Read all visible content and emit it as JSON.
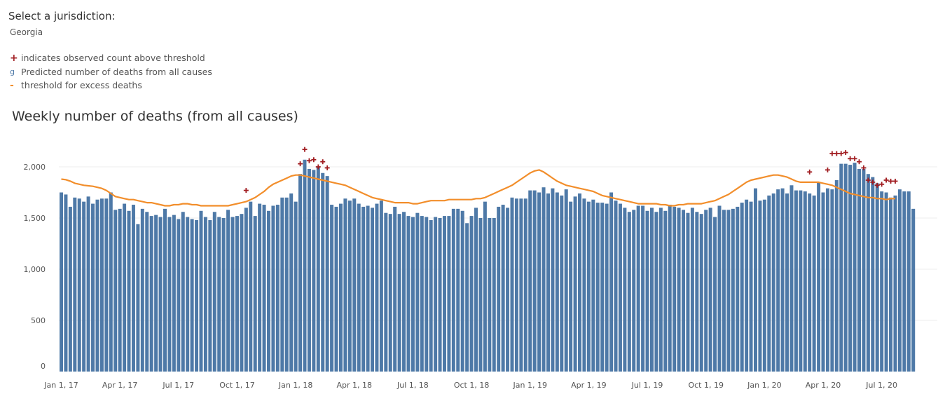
{
  "selector": {
    "label": "Select a jurisdiction:",
    "value": "Georgia"
  },
  "legend": {
    "items": [
      {
        "symbol": "+",
        "label": "indicates observed count above threshold",
        "icon": "plus-icon"
      },
      {
        "symbol": "g",
        "label": "Predicted number of deaths from all causes",
        "icon": "g-icon"
      },
      {
        "symbol": "-",
        "label": "threshold for excess deaths",
        "icon": "dash-icon"
      }
    ]
  },
  "colors": {
    "bar": "#4e79a7",
    "threshold": "#f28e2b",
    "marker": "#a11d21",
    "grid": "#eeeeee"
  },
  "chart_data": {
    "type": "bar",
    "title": "Weekly number of deaths (from all causes)",
    "xlabel": "",
    "ylabel": "",
    "ylim": [
      0,
      2200
    ],
    "yticks": [
      0,
      500,
      1000,
      1500,
      2000
    ],
    "ytick_labels": [
      "0",
      "500",
      "1,000",
      "1,500",
      "2,000"
    ],
    "xticks": [
      {
        "week": 0,
        "label": "Jan 1, 17"
      },
      {
        "week": 13,
        "label": "Apr 1, 17"
      },
      {
        "week": 26,
        "label": "Jul 1, 17"
      },
      {
        "week": 39,
        "label": "Oct 1, 17"
      },
      {
        "week": 52,
        "label": "Jan 1, 18"
      },
      {
        "week": 65,
        "label": "Apr 1, 18"
      },
      {
        "week": 78,
        "label": "Jul 1, 18"
      },
      {
        "week": 91,
        "label": "Oct 1, 18"
      },
      {
        "week": 104,
        "label": "Jan 1, 19"
      },
      {
        "week": 117,
        "label": "Apr 1, 19"
      },
      {
        "week": 130,
        "label": "Jul 1, 19"
      },
      {
        "week": 143,
        "label": "Oct 1, 19"
      },
      {
        "week": 156,
        "label": "Jan 1, 20"
      },
      {
        "week": 169,
        "label": "Apr 1, 20"
      },
      {
        "week": 182,
        "label": "Jul 1, 20"
      }
    ],
    "observed": [
      1750,
      1730,
      1610,
      1700,
      1690,
      1660,
      1710,
      1640,
      1680,
      1690,
      1690,
      1750,
      1580,
      1590,
      1640,
      1570,
      1630,
      1440,
      1590,
      1560,
      1520,
      1530,
      1510,
      1590,
      1510,
      1530,
      1490,
      1560,
      1510,
      1490,
      1480,
      1570,
      1510,
      1480,
      1560,
      1510,
      1500,
      1580,
      1510,
      1520,
      1540,
      1600,
      1660,
      1520,
      1640,
      1630,
      1570,
      1620,
      1630,
      1700,
      1700,
      1740,
      1660,
      1930,
      2070,
      1980,
      1970,
      2000,
      1940,
      1910,
      1630,
      1610,
      1640,
      1690,
      1670,
      1690,
      1640,
      1610,
      1620,
      1600,
      1640,
      1670,
      1550,
      1540,
      1610,
      1540,
      1560,
      1520,
      1510,
      1550,
      1520,
      1510,
      1480,
      1510,
      1500,
      1520,
      1520,
      1590,
      1590,
      1570,
      1450,
      1520,
      1600,
      1500,
      1660,
      1500,
      1500,
      1610,
      1630,
      1600,
      1700,
      1690,
      1690,
      1690,
      1770,
      1770,
      1750,
      1800,
      1740,
      1790,
      1750,
      1720,
      1780,
      1660,
      1710,
      1740,
      1690,
      1660,
      1680,
      1650,
      1650,
      1640,
      1750,
      1670,
      1640,
      1600,
      1560,
      1580,
      1620,
      1620,
      1570,
      1600,
      1560,
      1600,
      1570,
      1630,
      1610,
      1600,
      1580,
      1550,
      1600,
      1560,
      1540,
      1580,
      1600,
      1510,
      1620,
      1580,
      1580,
      1590,
      1610,
      1650,
      1680,
      1660,
      1790,
      1670,
      1680,
      1720,
      1740,
      1780,
      1790,
      1740,
      1820,
      1770,
      1770,
      1760,
      1740,
      1720,
      1850,
      1750,
      1790,
      1780,
      1870,
      2030,
      2030,
      2020,
      2040,
      1980,
      1980,
      1930,
      1900,
      1840,
      1760,
      1750,
      1700,
      1720,
      1780,
      1760,
      1760,
      1590
    ],
    "threshold": [
      1880,
      1875,
      1860,
      1840,
      1830,
      1820,
      1815,
      1810,
      1800,
      1790,
      1770,
      1740,
      1710,
      1700,
      1690,
      1680,
      1680,
      1670,
      1660,
      1650,
      1650,
      1640,
      1630,
      1620,
      1620,
      1630,
      1630,
      1640,
      1640,
      1630,
      1630,
      1620,
      1620,
      1620,
      1620,
      1620,
      1620,
      1620,
      1630,
      1640,
      1650,
      1660,
      1680,
      1700,
      1730,
      1760,
      1800,
      1830,
      1850,
      1870,
      1890,
      1910,
      1920,
      1920,
      1910,
      1900,
      1890,
      1880,
      1870,
      1860,
      1850,
      1840,
      1830,
      1820,
      1800,
      1780,
      1760,
      1740,
      1720,
      1700,
      1690,
      1680,
      1670,
      1660,
      1650,
      1650,
      1650,
      1650,
      1640,
      1640,
      1650,
      1660,
      1670,
      1670,
      1670,
      1670,
      1680,
      1680,
      1680,
      1680,
      1680,
      1680,
      1690,
      1690,
      1700,
      1720,
      1740,
      1760,
      1780,
      1800,
      1820,
      1850,
      1880,
      1910,
      1940,
      1960,
      1970,
      1950,
      1920,
      1890,
      1860,
      1840,
      1820,
      1810,
      1800,
      1790,
      1780,
      1770,
      1760,
      1740,
      1720,
      1710,
      1700,
      1690,
      1680,
      1670,
      1660,
      1650,
      1640,
      1640,
      1640,
      1640,
      1640,
      1630,
      1630,
      1620,
      1620,
      1630,
      1630,
      1640,
      1640,
      1640,
      1640,
      1650,
      1660,
      1670,
      1690,
      1710,
      1730,
      1760,
      1790,
      1820,
      1850,
      1870,
      1880,
      1890,
      1900,
      1910,
      1920,
      1920,
      1910,
      1900,
      1880,
      1860,
      1850,
      1850,
      1850,
      1850,
      1850,
      1840,
      1830,
      1820,
      1800,
      1780,
      1760,
      1740,
      1730,
      1720,
      1710,
      1700,
      1700,
      1690,
      1690,
      1680,
      1690,
      1690
    ],
    "above_threshold_weeks": [
      {
        "week": 41,
        "value": 1770
      },
      {
        "week": 53,
        "value": 2030
      },
      {
        "week": 54,
        "value": 2170
      },
      {
        "week": 55,
        "value": 2060
      },
      {
        "week": 56,
        "value": 2070
      },
      {
        "week": 57,
        "value": 2000
      },
      {
        "week": 58,
        "value": 2050
      },
      {
        "week": 59,
        "value": 1990
      },
      {
        "week": 166,
        "value": 1950
      },
      {
        "week": 170,
        "value": 1970
      },
      {
        "week": 171,
        "value": 2130
      },
      {
        "week": 172,
        "value": 2130
      },
      {
        "week": 173,
        "value": 2130
      },
      {
        "week": 174,
        "value": 2140
      },
      {
        "week": 175,
        "value": 2080
      },
      {
        "week": 176,
        "value": 2080
      },
      {
        "week": 177,
        "value": 2050
      },
      {
        "week": 178,
        "value": 1990
      },
      {
        "week": 179,
        "value": 1870
      },
      {
        "week": 180,
        "value": 1850
      },
      {
        "week": 181,
        "value": 1820
      },
      {
        "week": 182,
        "value": 1830
      },
      {
        "week": 183,
        "value": 1870
      },
      {
        "week": 184,
        "value": 1860
      },
      {
        "week": 185,
        "value": 1860
      }
    ]
  }
}
